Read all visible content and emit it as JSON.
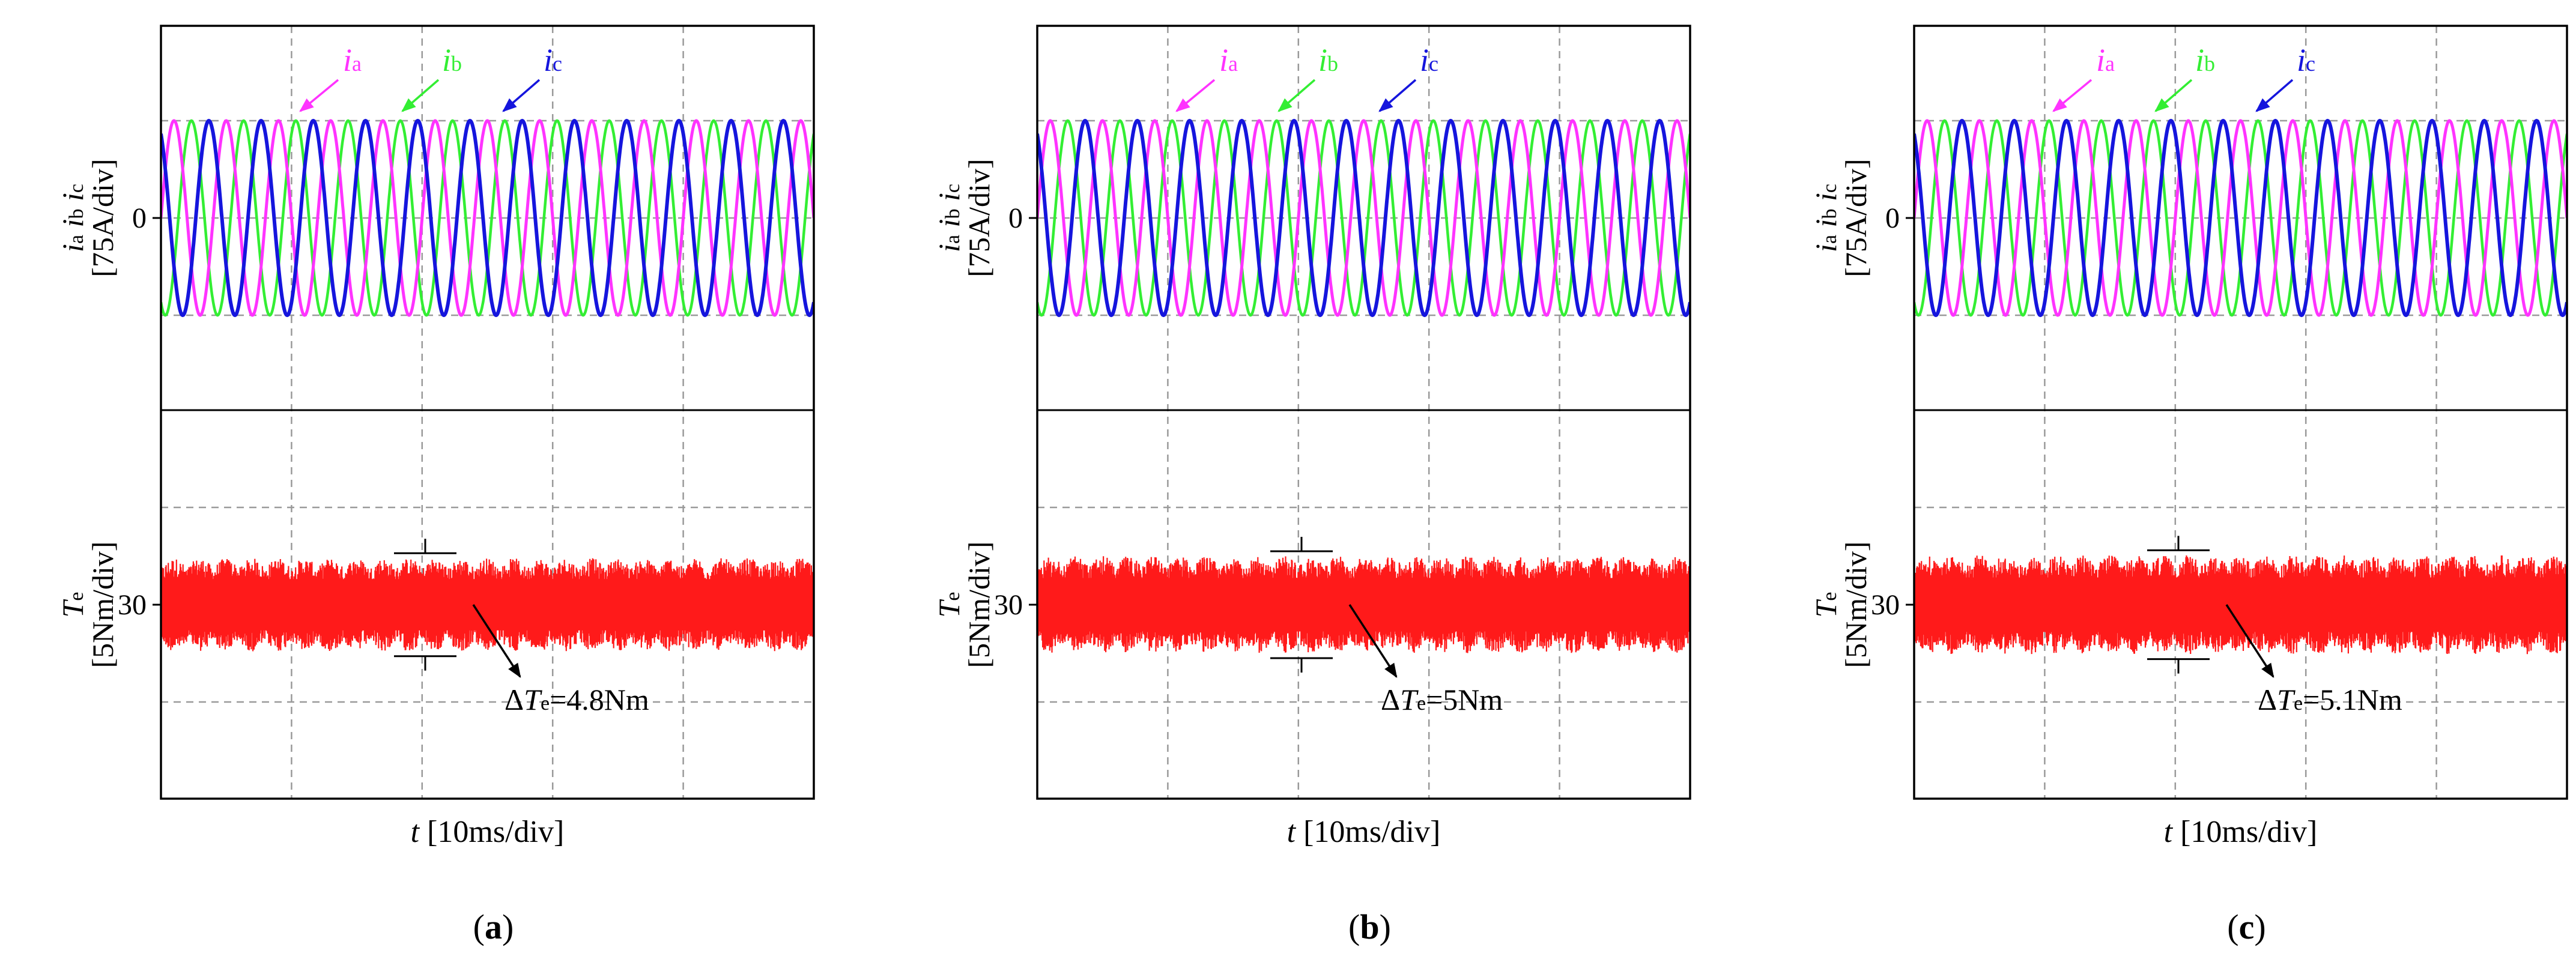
{
  "colors": {
    "ia": "#ff33ff",
    "ib": "#33ee33",
    "ic": "#1515dd",
    "te": "#ff1a1a",
    "grid": "#9a9a9a",
    "axis": "#000000"
  },
  "labels": {
    "current_axis_vars": "i_a i_b i_c",
    "current_axis_unit": "[75A/div]",
    "torque_axis_var": "T_e",
    "torque_axis_unit": "[5Nm/div]",
    "current_zero_tick": "0",
    "torque_30_tick": "30",
    "x_axis_label": "t [10ms/div]",
    "legend_ia": "ia",
    "legend_ib": "ib",
    "legend_ic": "ic"
  },
  "chart_data": [
    {
      "type": "line",
      "panel_label": "(a)",
      "current": {
        "series": [
          {
            "name": "ia",
            "amplitude_A": 75,
            "cycles_shown": 12.5,
            "phase_deg": 0
          },
          {
            "name": "ib",
            "amplitude_A": 75,
            "cycles_shown": 12.5,
            "phase_deg": -120
          },
          {
            "name": "ic",
            "amplitude_A": 75,
            "cycles_shown": 12.5,
            "phase_deg": 120
          }
        ],
        "y_div_A": 75,
        "y_center_A": 0,
        "y_divisions": 4
      },
      "torque": {
        "mean_Nm": 30,
        "ripple_annotation": "ΔTe=4.8Nm",
        "ripple_Nm": 4.8,
        "y_div_Nm": 5,
        "y_center_Nm": 30,
        "y_divisions": 4
      },
      "x_div_ms": 10,
      "x_divisions": 5
    },
    {
      "type": "line",
      "panel_label": "(b)",
      "current": {
        "series": [
          {
            "name": "ia",
            "amplitude_A": 75,
            "cycles_shown": 12.5,
            "phase_deg": 0
          },
          {
            "name": "ib",
            "amplitude_A": 75,
            "cycles_shown": 12.5,
            "phase_deg": -120
          },
          {
            "name": "ic",
            "amplitude_A": 75,
            "cycles_shown": 12.5,
            "phase_deg": 120
          }
        ],
        "y_div_A": 75,
        "y_center_A": 0,
        "y_divisions": 4
      },
      "torque": {
        "mean_Nm": 30,
        "ripple_annotation": "ΔTe=5Nm",
        "ripple_Nm": 5,
        "y_div_Nm": 5,
        "y_center_Nm": 30,
        "y_divisions": 4
      },
      "x_div_ms": 10,
      "x_divisions": 5
    },
    {
      "type": "line",
      "panel_label": "(c)",
      "current": {
        "series": [
          {
            "name": "ia",
            "amplitude_A": 75,
            "cycles_shown": 12.5,
            "phase_deg": 0
          },
          {
            "name": "ib",
            "amplitude_A": 75,
            "cycles_shown": 12.5,
            "phase_deg": -120
          },
          {
            "name": "ic",
            "amplitude_A": 75,
            "cycles_shown": 12.5,
            "phase_deg": 120
          }
        ],
        "y_div_A": 75,
        "y_center_A": 0,
        "y_divisions": 4
      },
      "torque": {
        "mean_Nm": 30,
        "ripple_annotation": "ΔTe=5.1Nm",
        "ripple_Nm": 5.1,
        "y_div_Nm": 5,
        "y_center_Nm": 30,
        "y_divisions": 4
      },
      "x_div_ms": 10,
      "x_divisions": 5
    }
  ]
}
